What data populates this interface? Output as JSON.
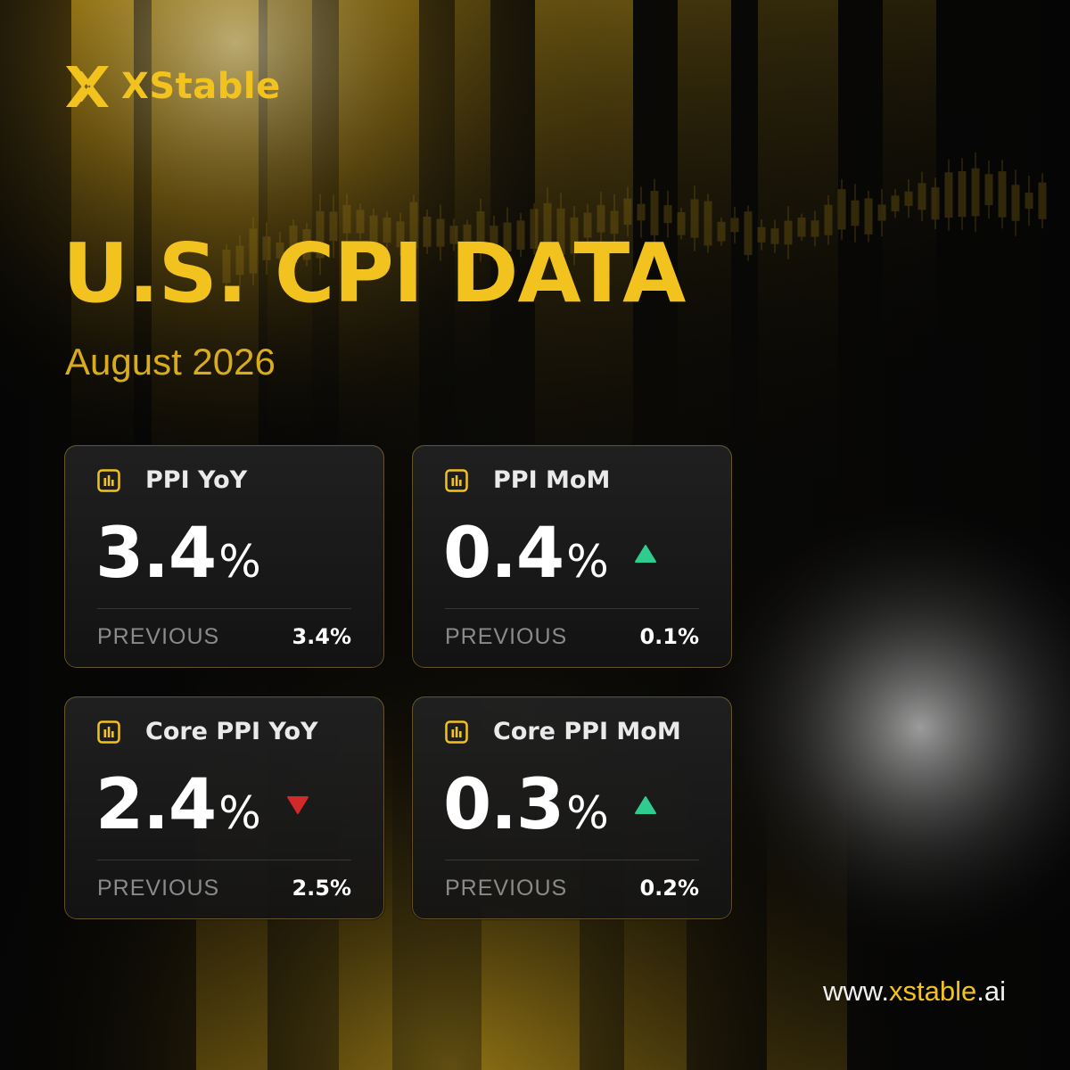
{
  "brand": {
    "name": "XStable",
    "color": "#f2c31e"
  },
  "title": "U.S. CPI DATA",
  "subtitle": "August 2026",
  "colors": {
    "up": "#2ecc8e",
    "down": "#d3292b",
    "gold": "#f2c31e"
  },
  "cards": [
    {
      "label": "PPI YoY",
      "value": "3.4",
      "unit": "%",
      "trend": "none",
      "previous_label": "PREVIOUS",
      "previous_value": "3.4%",
      "icon": "bar-chart-icon"
    },
    {
      "label": "PPI MoM",
      "value": "0.4",
      "unit": "%",
      "trend": "up",
      "previous_label": "PREVIOUS",
      "previous_value": "0.1%",
      "icon": "bar-chart-icon"
    },
    {
      "label": "Core PPI YoY",
      "value": "2.4",
      "unit": "%",
      "trend": "down",
      "previous_label": "PREVIOUS",
      "previous_value": "2.5%",
      "icon": "bar-chart-icon"
    },
    {
      "label": "Core PPI MoM",
      "value": "0.3",
      "unit": "%",
      "trend": "up",
      "previous_label": "PREVIOUS",
      "previous_value": "0.2%",
      "icon": "bar-chart-icon"
    }
  ],
  "footer": {
    "prefix": "www.",
    "domain": "xstable",
    "suffix": ".ai"
  }
}
